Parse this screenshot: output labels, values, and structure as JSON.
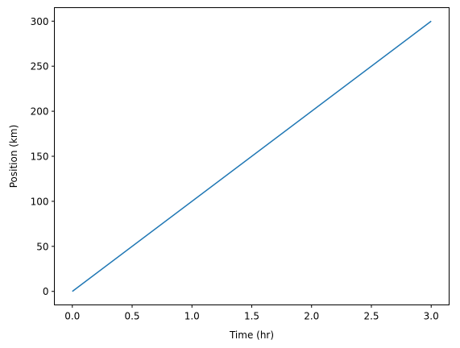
{
  "chart_data": {
    "type": "line",
    "title": "",
    "xlabel": "Time (hr)",
    "ylabel": "Position (km)",
    "xlim": [
      -0.15,
      3.15
    ],
    "ylim": [
      -15,
      315
    ],
    "x_ticks": [
      0.0,
      0.5,
      1.0,
      1.5,
      2.0,
      2.5,
      3.0
    ],
    "x_tick_labels": [
      "0.0",
      "0.5",
      "1.0",
      "1.5",
      "2.0",
      "2.5",
      "3.0"
    ],
    "y_ticks": [
      0,
      50,
      100,
      150,
      200,
      250,
      300
    ],
    "y_tick_labels": [
      "0",
      "50",
      "100",
      "150",
      "200",
      "250",
      "300"
    ],
    "grid": false,
    "series": [
      {
        "color": "#1f77b4",
        "x": [
          0.0,
          3.0
        ],
        "y": [
          0,
          300
        ]
      }
    ]
  }
}
